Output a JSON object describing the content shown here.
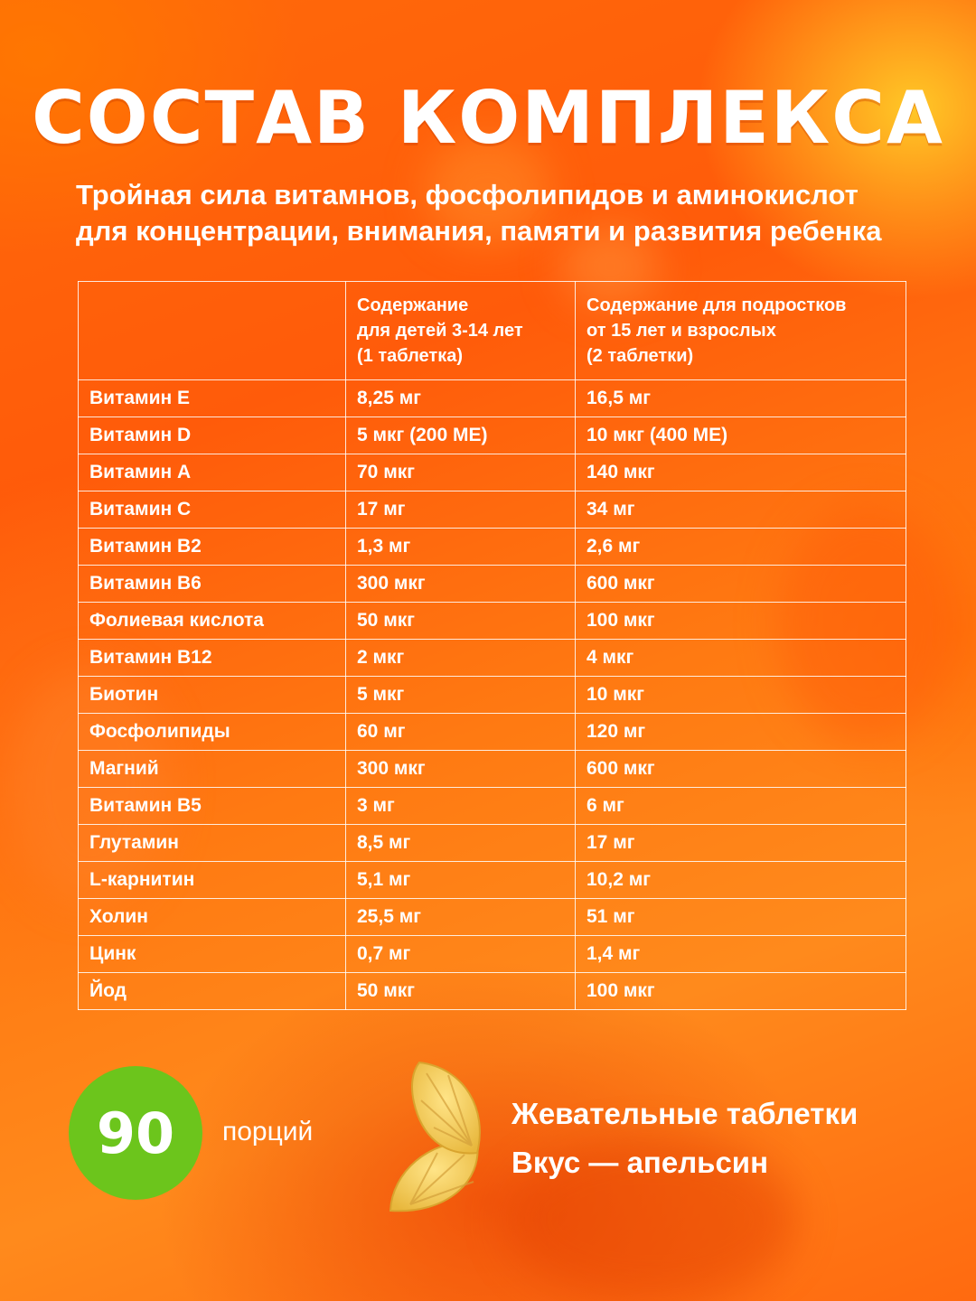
{
  "title": "СОСТАВ КОМПЛЕКСА",
  "subtitle": {
    "line1": "Тройная сила витамнов, фосфолипидов и аминокислот",
    "line2": "для концентрации, внимания, памяти и развития ребенка"
  },
  "table": {
    "header": {
      "col1": "",
      "col2": [
        "Содержание",
        "для детей 3-14 лет",
        "(1 таблетка)"
      ],
      "col3": [
        "Содержание для подростков",
        "от 15 лет и взрослых",
        "(2 таблетки)"
      ]
    },
    "rows": [
      [
        "Витамин Е",
        "8,25 мг",
        "16,5 мг"
      ],
      [
        "Витамин D",
        "5 мкг (200 МЕ)",
        "10 мкг (400 МЕ)"
      ],
      [
        "Витамин А",
        "70 мкг",
        "140 мкг"
      ],
      [
        "Витамин С",
        "17 мг",
        "34 мг"
      ],
      [
        "Витамин В2",
        "1,3 мг",
        "2,6 мг"
      ],
      [
        "Витамин В6",
        "300 мкг",
        "600 мкг"
      ],
      [
        "Фолиевая кислота",
        "50 мкг",
        "100 мкг"
      ],
      [
        "Витамин В12",
        "2 мкг",
        "4 мкг"
      ],
      [
        "Биотин",
        "5 мкг",
        "10 мкг"
      ],
      [
        "Фосфолипиды",
        "60 мг",
        "120 мг"
      ],
      [
        "Магний",
        "300 мкг",
        "600 мкг"
      ],
      [
        "Витамин В5",
        "3 мг",
        "6 мг"
      ],
      [
        "Глутамин",
        "8,5 мг",
        "17 мг"
      ],
      [
        "L-карнитин",
        "5,1 мг",
        "10,2 мг"
      ],
      [
        "Холин",
        "25,5 мг",
        "51 мг"
      ],
      [
        "Цинк",
        "0,7 мг",
        "1,4 мг"
      ],
      [
        "Йод",
        "50 мкг",
        "100 мкг"
      ]
    ]
  },
  "portions": {
    "count": "90",
    "label": "порций",
    "badge_color": "#6cc51c"
  },
  "product": {
    "type": "Жевательные таблетки",
    "flavor": "Вкус — апельсин",
    "icon": "orange-slice-tablet-icon"
  }
}
